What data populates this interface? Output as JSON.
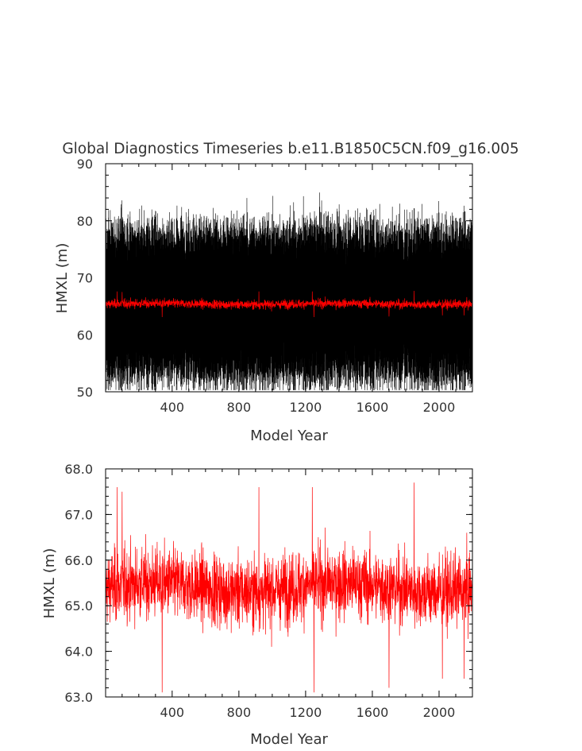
{
  "chart_data": [
    {
      "type": "line",
      "title": "Global Diagnostics Timeseries b.e11.B1850C5CN.f09_g16.005",
      "xlabel": "Model Year",
      "ylabel": "HMXL (m)",
      "xlim": [
        1,
        2200
      ],
      "ylim": [
        50,
        90
      ],
      "xticks": [
        400,
        800,
        1200,
        1600,
        2000
      ],
      "xtick_labels": [
        "400",
        "800",
        "1200",
        "1600",
        "2000"
      ],
      "yticks": [
        50,
        60,
        70,
        80,
        90
      ],
      "ytick_labels": [
        "50",
        "60",
        "70",
        "80",
        "90"
      ],
      "grid": false,
      "series": [
        {
          "color": "#000000",
          "resolution": "monthly",
          "values_summary": {
            "min": 50.3,
            "max": 85.6,
            "mean": 65.5,
            "period_years": 1
          }
        },
        {
          "color": "#ff0000",
          "resolution": "annual mean",
          "values_summary": {
            "min": 63.1,
            "max": 67.7,
            "mean": 65.4
          }
        }
      ]
    },
    {
      "type": "line",
      "title": "",
      "xlabel": "Model Year",
      "ylabel": "HMXL (m)",
      "xlim": [
        1,
        2200
      ],
      "ylim": [
        63.0,
        68.0
      ],
      "xticks": [
        400,
        800,
        1200,
        1600,
        2000
      ],
      "xtick_labels": [
        "400",
        "800",
        "1200",
        "1600",
        "2000"
      ],
      "yticks": [
        63.0,
        64.0,
        65.0,
        66.0,
        67.0,
        68.0
      ],
      "ytick_labels": [
        "63.0",
        "64.0",
        "65.0",
        "66.0",
        "67.0",
        "68.0"
      ],
      "grid": false,
      "series": [
        {
          "color": "#ff0000",
          "resolution": "annual mean",
          "values_summary": {
            "min": 63.1,
            "max": 67.7,
            "mean": 65.4
          },
          "notable_points": [
            {
              "x": 70,
              "y": 67.6
            },
            {
              "x": 100,
              "y": 67.5
            },
            {
              "x": 340,
              "y": 63.1
            },
            {
              "x": 920,
              "y": 67.6
            },
            {
              "x": 1240,
              "y": 67.6
            },
            {
              "x": 1250,
              "y": 63.1
            },
            {
              "x": 1700,
              "y": 63.2
            },
            {
              "x": 1850,
              "y": 67.7
            },
            {
              "x": 2020,
              "y": 63.4
            },
            {
              "x": 2150,
              "y": 63.4
            }
          ]
        }
      ]
    }
  ]
}
